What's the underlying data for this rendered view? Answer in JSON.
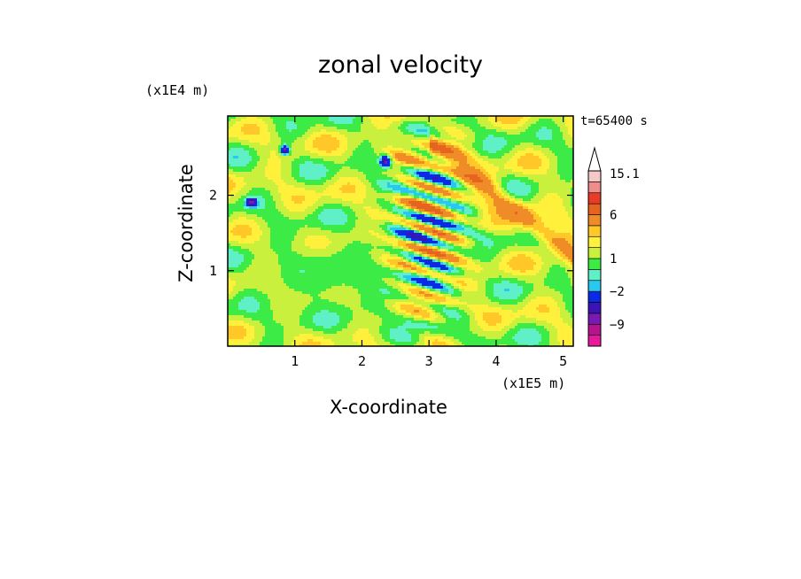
{
  "chart_data": {
    "type": "heatmap",
    "title": "zonal velocity",
    "xlabel": "X-coordinate",
    "ylabel": "Z-coordinate",
    "x_unit_label": "(x1E5 m)",
    "y_unit_label": "(x1E4 m)",
    "time_label": "t=65400 s",
    "xlim": [
      0,
      5.15
    ],
    "ylim": [
      0,
      3.05
    ],
    "xticks": [
      "1",
      "2",
      "3",
      "4",
      "5"
    ],
    "xtick_values": [
      1,
      2,
      3,
      4,
      5
    ],
    "yticks": [
      "1",
      "2"
    ],
    "ytick_values": [
      1,
      2
    ],
    "colorbar": {
      "levels": [
        -15,
        -12,
        -9,
        -6,
        -4,
        -2,
        -1,
        0,
        1,
        2,
        3,
        4,
        6,
        9,
        12,
        15.1
      ],
      "colors": [
        "#e6189e",
        "#b4148c",
        "#7a1ab4",
        "#3c14b4",
        "#0a2ae6",
        "#28c8f0",
        "#5ff0c8",
        "#3ceb46",
        "#c8f03c",
        "#fff03c",
        "#ffc828",
        "#f08c28",
        "#e6641e",
        "#e63c28",
        "#f08c8c",
        "#f5c8c8"
      ],
      "labels": [
        "15.1",
        "6",
        "1",
        "−2",
        "−9"
      ],
      "label_values": [
        15.1,
        6,
        1,
        -2,
        -9
      ],
      "extend": "max"
    },
    "grid": false,
    "legend": "colorbar right"
  }
}
